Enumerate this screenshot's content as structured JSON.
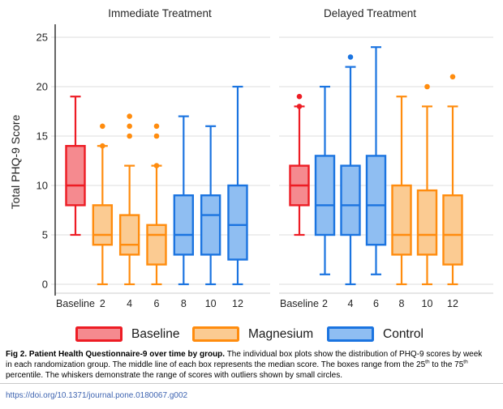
{
  "chart_data": {
    "type": "boxplot",
    "ylabel": "Total PHQ-9 Score",
    "ylim": [
      0,
      25
    ],
    "yticks": [
      0,
      5,
      10,
      15,
      20,
      25
    ],
    "grid": true,
    "panels": [
      {
        "title": "Immediate Treatment",
        "categories": [
          "Baseline",
          "2",
          "4",
          "6",
          "8",
          "10",
          "12"
        ],
        "boxes": [
          {
            "group": "Baseline",
            "low": 5,
            "q1": 8,
            "median": 10,
            "q3": 14,
            "high": 19,
            "outliers": []
          },
          {
            "group": "Magnesium",
            "low": 0,
            "q1": 4,
            "median": 5,
            "q3": 8,
            "high": 14,
            "outliers": [
              14,
              16
            ]
          },
          {
            "group": "Magnesium",
            "low": 0,
            "q1": 3,
            "median": 4,
            "q3": 7,
            "high": 12,
            "outliers": [
              15,
              16,
              17
            ]
          },
          {
            "group": "Magnesium",
            "low": 0,
            "q1": 2,
            "median": 5,
            "q3": 6,
            "high": 12,
            "outliers": [
              12,
              15,
              16
            ]
          },
          {
            "group": "Control",
            "low": 0,
            "q1": 3,
            "median": 5,
            "q3": 9,
            "high": 17,
            "outliers": []
          },
          {
            "group": "Control",
            "low": 0,
            "q1": 3,
            "median": 7,
            "q3": 9,
            "high": 16,
            "outliers": []
          },
          {
            "group": "Control",
            "low": 0,
            "q1": 2.5,
            "median": 6,
            "q3": 10,
            "high": 20,
            "outliers": []
          }
        ]
      },
      {
        "title": "Delayed Treatment",
        "categories": [
          "Baseline",
          "2",
          "4",
          "6",
          "8",
          "10",
          "12"
        ],
        "boxes": [
          {
            "group": "Baseline",
            "low": 5,
            "q1": 8,
            "median": 10,
            "q3": 12,
            "high": 18,
            "outliers": [
              18,
              19
            ]
          },
          {
            "group": "Control",
            "low": 1,
            "q1": 5,
            "median": 8,
            "q3": 13,
            "high": 20,
            "outliers": []
          },
          {
            "group": "Control",
            "low": 0,
            "q1": 5,
            "median": 8,
            "q3": 12,
            "high": 22,
            "outliers": [
              23
            ]
          },
          {
            "group": "Control",
            "low": 1,
            "q1": 4,
            "median": 8,
            "q3": 13,
            "high": 24,
            "outliers": []
          },
          {
            "group": "Magnesium",
            "low": 0,
            "q1": 3,
            "median": 5,
            "q3": 10,
            "high": 19,
            "outliers": []
          },
          {
            "group": "Magnesium",
            "low": 0,
            "q1": 3,
            "median": 5,
            "q3": 9.5,
            "high": 18,
            "outliers": [
              20
            ]
          },
          {
            "group": "Magnesium",
            "low": 0,
            "q1": 2,
            "median": 5,
            "q3": 9,
            "high": 18,
            "outliers": [
              21
            ]
          }
        ]
      }
    ],
    "groups": {
      "Baseline": {
        "stroke": "#ED1C24",
        "fill": "#F58A8F"
      },
      "Magnesium": {
        "stroke": "#FF8C0E",
        "fill": "#FBCB92"
      },
      "Control": {
        "stroke": "#1B74E0",
        "fill": "#8FBEF2"
      }
    },
    "legend": [
      {
        "label": "Baseline",
        "color_key": "Baseline"
      },
      {
        "label": "Magnesium",
        "color_key": "Magnesium"
      },
      {
        "label": "Control",
        "color_key": "Control"
      }
    ],
    "legend_position": "bottom"
  },
  "caption": {
    "fig_label": "Fig 2.",
    "fig_title": "Patient Health Questionnaire-9 over time by group.",
    "seg1": "The individual box plots show the distribution of PHQ-9 scores by week in each randomization group. The middle line of each box represents the median score. The boxes range from the 25",
    "sup1": "th",
    "seg2": " to the 75",
    "sup2": "th",
    "seg3": " percentile. The whiskers demonstrate the range of scores with outliers shown by small circles.",
    "doi": "https://doi.org/10.1371/journal.pone.0180067.g002"
  }
}
